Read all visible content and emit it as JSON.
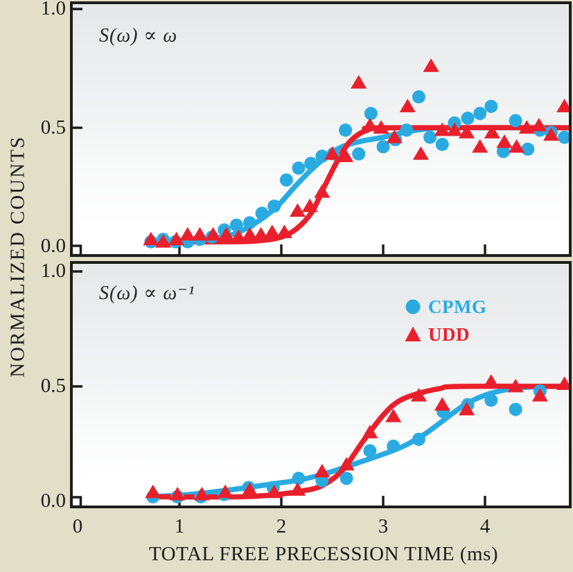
{
  "figure": {
    "xlabel": "TOTAL FREE PRECESSION TIME (ms)",
    "ylabel": "NORMALIZED COUNTS"
  },
  "chart_data": {
    "type": "scatter",
    "title": "",
    "xlabel": "TOTAL FREE PRECESSION TIME (ms)",
    "ylabel": "NORMALIZED COUNTS",
    "xlim": [
      0,
      4.85
    ],
    "ylim": [
      0,
      1.05
    ],
    "xticks": [
      0,
      1,
      2,
      3,
      4
    ],
    "yticks": [
      "1.0",
      "0.5",
      "0.0"
    ],
    "ytick_values": [
      1.0,
      0.5,
      0.0
    ],
    "grid": false,
    "legend_position": "upper-right-of-bottom-panel",
    "colors": {
      "cpmg": "#29abe2",
      "udd": "#e9202c",
      "axis": "#1d1d1b",
      "background": "#e2dfc9"
    },
    "legend": {
      "items": [
        {
          "label": "CPMG",
          "marker": "circle",
          "color": "#29abe2"
        },
        {
          "label": "UDD",
          "marker": "triangle",
          "color": "#e9202c"
        }
      ]
    },
    "panels": [
      {
        "annotation": "S(ω) ∝ ω",
        "series": [
          {
            "name": "CPMG",
            "marker": "circle",
            "color": "#29abe2",
            "points": [
              [
                0.72,
                0.02
              ],
              [
                0.84,
                0.03
              ],
              [
                0.96,
                0.02
              ],
              [
                1.08,
                0.02
              ],
              [
                1.2,
                0.03
              ],
              [
                1.32,
                0.04
              ],
              [
                1.44,
                0.07
              ],
              [
                1.56,
                0.09
              ],
              [
                1.69,
                0.1
              ],
              [
                1.81,
                0.14
              ],
              [
                1.93,
                0.17
              ],
              [
                2.05,
                0.28
              ],
              [
                2.17,
                0.33
              ],
              [
                2.29,
                0.35
              ],
              [
                2.4,
                0.38
              ],
              [
                2.51,
                0.39
              ],
              [
                2.63,
                0.49
              ],
              [
                2.76,
                0.39
              ],
              [
                2.88,
                0.56
              ],
              [
                3.0,
                0.42
              ],
              [
                3.12,
                0.45
              ],
              [
                3.23,
                0.49
              ],
              [
                3.35,
                0.63
              ],
              [
                3.46,
                0.46
              ],
              [
                3.58,
                0.43
              ],
              [
                3.7,
                0.52
              ],
              [
                3.83,
                0.54
              ],
              [
                3.95,
                0.56
              ],
              [
                4.06,
                0.59
              ],
              [
                4.18,
                0.4
              ],
              [
                4.3,
                0.53
              ],
              [
                4.42,
                0.41
              ],
              [
                4.54,
                0.49
              ],
              [
                4.65,
                0.48
              ],
              [
                4.78,
                0.46
              ]
            ],
            "fit": [
              [
                0.7,
                0.02
              ],
              [
                1.1,
                0.02
              ],
              [
                1.35,
                0.035
              ],
              [
                1.55,
                0.055
              ],
              [
                1.75,
                0.1
              ],
              [
                1.95,
                0.165
              ],
              [
                2.15,
                0.26
              ],
              [
                2.35,
                0.345
              ],
              [
                2.55,
                0.41
              ],
              [
                2.75,
                0.44
              ],
              [
                3.0,
                0.46
              ],
              [
                3.2,
                0.48
              ],
              [
                3.45,
                0.497
              ],
              [
                3.7,
                0.5
              ],
              [
                4.83,
                0.5
              ]
            ]
          },
          {
            "name": "UDD",
            "marker": "triangle",
            "color": "#e9202c",
            "points": [
              [
                0.72,
                0.03
              ],
              [
                0.84,
                0.02
              ],
              [
                0.97,
                0.03
              ],
              [
                1.08,
                0.05
              ],
              [
                1.2,
                0.05
              ],
              [
                1.33,
                0.05
              ],
              [
                1.46,
                0.05
              ],
              [
                1.58,
                0.04
              ],
              [
                1.69,
                0.05
              ],
              [
                1.8,
                0.05
              ],
              [
                1.91,
                0.06
              ],
              [
                2.03,
                0.06
              ],
              [
                2.16,
                0.15
              ],
              [
                2.28,
                0.17
              ],
              [
                2.4,
                0.23
              ],
              [
                2.5,
                0.39
              ],
              [
                2.63,
                0.38
              ],
              [
                2.76,
                0.69
              ],
              [
                2.87,
                0.51
              ],
              [
                2.98,
                0.5
              ],
              [
                3.11,
                0.46
              ],
              [
                3.24,
                0.59
              ],
              [
                3.37,
                0.39
              ],
              [
                3.47,
                0.76
              ],
              [
                3.58,
                0.49
              ],
              [
                3.7,
                0.49
              ],
              [
                3.82,
                0.48
              ],
              [
                3.95,
                0.42
              ],
              [
                4.07,
                0.48
              ],
              [
                4.19,
                0.44
              ],
              [
                4.31,
                0.42
              ],
              [
                4.41,
                0.5
              ],
              [
                4.53,
                0.51
              ],
              [
                4.65,
                0.47
              ],
              [
                4.78,
                0.59
              ]
            ],
            "fit": [
              [
                0.7,
                0.02
              ],
              [
                1.5,
                0.02
              ],
              [
                1.8,
                0.025
              ],
              [
                2.0,
                0.04
              ],
              [
                2.15,
                0.075
              ],
              [
                2.3,
                0.145
              ],
              [
                2.42,
                0.25
              ],
              [
                2.55,
                0.36
              ],
              [
                2.65,
                0.43
              ],
              [
                2.75,
                0.47
              ],
              [
                2.85,
                0.49
              ],
              [
                3.0,
                0.5
              ],
              [
                4.83,
                0.5
              ]
            ]
          }
        ]
      },
      {
        "annotation": "S(ω) ∝ ω⁻¹",
        "series": [
          {
            "name": "CPMG",
            "marker": "circle",
            "color": "#29abe2",
            "points": [
              [
                0.74,
                0.02
              ],
              [
                0.98,
                0.02
              ],
              [
                1.21,
                0.02
              ],
              [
                1.44,
                0.03
              ],
              [
                1.68,
                0.06
              ],
              [
                1.92,
                0.06
              ],
              [
                2.17,
                0.1
              ],
              [
                2.4,
                0.09
              ],
              [
                2.64,
                0.1
              ],
              [
                2.87,
                0.22
              ],
              [
                3.1,
                0.24
              ],
              [
                3.35,
                0.27
              ],
              [
                3.59,
                0.39
              ],
              [
                3.83,
                0.42
              ],
              [
                4.06,
                0.44
              ],
              [
                4.3,
                0.4
              ],
              [
                4.54,
                0.48
              ]
            ],
            "fit": [
              [
                0.7,
                0.02
              ],
              [
                1.1,
                0.03
              ],
              [
                1.5,
                0.05
              ],
              [
                1.9,
                0.075
              ],
              [
                2.2,
                0.095
              ],
              [
                2.5,
                0.13
              ],
              [
                2.8,
                0.175
              ],
              [
                3.0,
                0.205
              ],
              [
                3.2,
                0.24
              ],
              [
                3.4,
                0.29
              ],
              [
                3.6,
                0.355
              ],
              [
                3.8,
                0.42
              ],
              [
                4.0,
                0.462
              ],
              [
                4.2,
                0.485
              ],
              [
                4.4,
                0.496
              ],
              [
                4.6,
                0.5
              ],
              [
                4.83,
                0.5
              ]
            ]
          },
          {
            "name": "UDD",
            "marker": "triangle",
            "color": "#e9202c",
            "points": [
              [
                0.74,
                0.04
              ],
              [
                0.98,
                0.03
              ],
              [
                1.22,
                0.03
              ],
              [
                1.45,
                0.04
              ],
              [
                1.69,
                0.05
              ],
              [
                1.93,
                0.04
              ],
              [
                2.16,
                0.05
              ],
              [
                2.4,
                0.13
              ],
              [
                2.64,
                0.16
              ],
              [
                2.87,
                0.3
              ],
              [
                3.1,
                0.37
              ],
              [
                3.35,
                0.46
              ],
              [
                3.58,
                0.42
              ],
              [
                3.82,
                0.4
              ],
              [
                4.06,
                0.52
              ],
              [
                4.3,
                0.5
              ],
              [
                4.54,
                0.46
              ],
              [
                4.78,
                0.51
              ]
            ],
            "fit": [
              [
                0.7,
                0.02
              ],
              [
                1.6,
                0.02
              ],
              [
                2.0,
                0.032
              ],
              [
                2.2,
                0.045
              ],
              [
                2.4,
                0.068
              ],
              [
                2.6,
                0.135
              ],
              [
                2.8,
                0.26
              ],
              [
                3.0,
                0.375
              ],
              [
                3.15,
                0.435
              ],
              [
                3.35,
                0.47
              ],
              [
                3.55,
                0.49
              ],
              [
                3.75,
                0.5
              ],
              [
                4.83,
                0.5
              ]
            ]
          }
        ]
      }
    ]
  }
}
